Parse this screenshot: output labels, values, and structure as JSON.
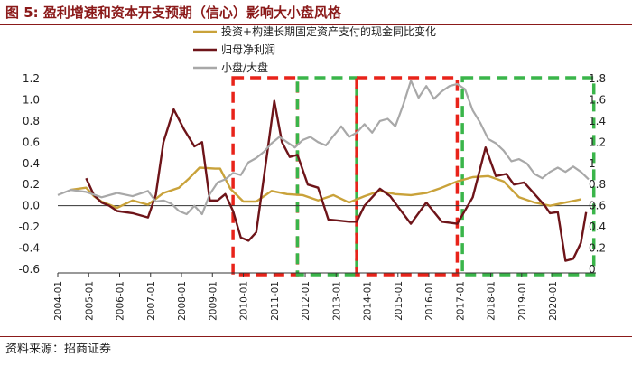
{
  "figure": {
    "title": "图 5: 盈利增速和资本开支预期（信心）影响大小盘风格",
    "source": "资料来源：招商证券"
  },
  "chart_data": {
    "type": "line",
    "x_ticks": [
      "2004-01",
      "2005-01",
      "2006-01",
      "2007-01",
      "2008-01",
      "2009-01",
      "2010-01",
      "2011-01",
      "2012-01",
      "2013-01",
      "2014-01",
      "2015-01",
      "2016-01",
      "2017-01",
      "2018-01",
      "2019-01",
      "2020-01"
    ],
    "y_left": {
      "ticks": [
        "-0.6",
        "-0.4",
        "-0.2",
        "0.0",
        "0.2",
        "0.4",
        "0.6",
        "0.8",
        "1.0",
        "1.2"
      ],
      "range": [
        -0.6,
        1.2
      ]
    },
    "y_right": {
      "ticks": [
        "0",
        "0.2",
        "0.4",
        "0.6",
        "0.8",
        "1",
        "1.2",
        "1.4",
        "1.6",
        "1.8"
      ],
      "range": [
        0,
        1.8
      ]
    },
    "legend_position": "top",
    "series": [
      {
        "name": "投资+构建长期固定资产支付的现金同比变化",
        "axis": "left",
        "color": "#c9a23a",
        "points": [
          [
            "2004-06",
            0.15
          ],
          [
            "2004-12",
            0.17
          ],
          [
            "2005-03",
            0.09
          ],
          [
            "2005-06",
            0.04
          ],
          [
            "2005-12",
            -0.02
          ],
          [
            "2006-06",
            0.05
          ],
          [
            "2006-12",
            0.01
          ],
          [
            "2007-06",
            0.12
          ],
          [
            "2007-12",
            0.17
          ],
          [
            "2008-04",
            0.26
          ],
          [
            "2008-08",
            0.36
          ],
          [
            "2009-02",
            0.35
          ],
          [
            "2009-04",
            0.35
          ],
          [
            "2009-08",
            0.16
          ],
          [
            "2010-01",
            0.04
          ],
          [
            "2010-06",
            0.04
          ],
          [
            "2010-12",
            0.14
          ],
          [
            "2011-06",
            0.11
          ],
          [
            "2011-12",
            0.1
          ],
          [
            "2012-06",
            0.05
          ],
          [
            "2012-12",
            0.1
          ],
          [
            "2013-06",
            0.03
          ],
          [
            "2013-12",
            0.09
          ],
          [
            "2014-06",
            0.14
          ],
          [
            "2014-12",
            0.11
          ],
          [
            "2015-06",
            0.1
          ],
          [
            "2015-12",
            0.12
          ],
          [
            "2016-06",
            0.17
          ],
          [
            "2016-12",
            0.23
          ],
          [
            "2017-06",
            0.27
          ],
          [
            "2017-12",
            0.28
          ],
          [
            "2018-06",
            0.23
          ],
          [
            "2018-12",
            0.08
          ],
          [
            "2019-06",
            0.03
          ],
          [
            "2019-12",
            0.0
          ],
          [
            "2020-06",
            0.03
          ],
          [
            "2020-12",
            0.06
          ]
        ]
      },
      {
        "name": "归母净利润",
        "axis": "left",
        "color": "#6e1419",
        "points": [
          [
            "2004-12",
            0.26
          ],
          [
            "2005-03",
            0.1
          ],
          [
            "2005-06",
            0.03
          ],
          [
            "2005-09",
            0.0
          ],
          [
            "2005-12",
            -0.05
          ],
          [
            "2006-06",
            -0.07
          ],
          [
            "2006-12",
            -0.11
          ],
          [
            "2007-03",
            0.1
          ],
          [
            "2007-06",
            0.6
          ],
          [
            "2007-10",
            0.91
          ],
          [
            "2008-02",
            0.72
          ],
          [
            "2008-06",
            0.56
          ],
          [
            "2008-09",
            0.6
          ],
          [
            "2008-12",
            0.05
          ],
          [
            "2009-03",
            0.05
          ],
          [
            "2009-06",
            0.11
          ],
          [
            "2009-09",
            -0.05
          ],
          [
            "2009-12",
            -0.3
          ],
          [
            "2010-03",
            -0.33
          ],
          [
            "2010-06",
            -0.25
          ],
          [
            "2010-10",
            0.45
          ],
          [
            "2011-01",
            0.99
          ],
          [
            "2011-04",
            0.6
          ],
          [
            "2011-07",
            0.46
          ],
          [
            "2011-10",
            0.48
          ],
          [
            "2012-02",
            0.2
          ],
          [
            "2012-06",
            0.17
          ],
          [
            "2012-10",
            -0.13
          ],
          [
            "2013-02",
            -0.14
          ],
          [
            "2013-06",
            -0.15
          ],
          [
            "2013-09",
            -0.15
          ],
          [
            "2013-12",
            0.0
          ],
          [
            "2014-03",
            0.08
          ],
          [
            "2014-06",
            0.16
          ],
          [
            "2014-10",
            0.09
          ],
          [
            "2015-01",
            -0.01
          ],
          [
            "2015-06",
            -0.17
          ],
          [
            "2015-12",
            0.03
          ],
          [
            "2016-06",
            -0.15
          ],
          [
            "2016-12",
            -0.17
          ],
          [
            "2017-06",
            0.08
          ],
          [
            "2017-11",
            0.55
          ],
          [
            "2018-03",
            0.28
          ],
          [
            "2018-07",
            0.3
          ],
          [
            "2018-10",
            0.2
          ],
          [
            "2019-02",
            0.22
          ],
          [
            "2019-06",
            0.11
          ],
          [
            "2019-10",
            0.0
          ],
          [
            "2019-12",
            -0.07
          ],
          [
            "2020-03",
            -0.06
          ],
          [
            "2020-06",
            -0.52
          ],
          [
            "2020-09",
            -0.5
          ],
          [
            "2020-12",
            -0.35
          ],
          [
            "2021-02",
            -0.06
          ]
        ]
      },
      {
        "name": "小盘/大盘",
        "axis": "right",
        "color": "#a8a8a8",
        "points": [
          [
            "2004-01",
            0.7
          ],
          [
            "2004-06",
            0.75
          ],
          [
            "2004-12",
            0.73
          ],
          [
            "2005-06",
            0.68
          ],
          [
            "2005-12",
            0.72
          ],
          [
            "2006-06",
            0.69
          ],
          [
            "2006-12",
            0.74
          ],
          [
            "2007-03",
            0.64
          ],
          [
            "2007-06",
            0.65
          ],
          [
            "2007-09",
            0.62
          ],
          [
            "2007-12",
            0.55
          ],
          [
            "2008-03",
            0.52
          ],
          [
            "2008-06",
            0.6
          ],
          [
            "2008-09",
            0.52
          ],
          [
            "2008-12",
            0.71
          ],
          [
            "2009-03",
            0.82
          ],
          [
            "2009-06",
            0.85
          ],
          [
            "2009-09",
            0.91
          ],
          [
            "2009-12",
            0.89
          ],
          [
            "2010-03",
            1.01
          ],
          [
            "2010-06",
            1.05
          ],
          [
            "2010-09",
            1.11
          ],
          [
            "2010-12",
            1.19
          ],
          [
            "2011-03",
            1.25
          ],
          [
            "2011-06",
            1.2
          ],
          [
            "2011-09",
            1.15
          ],
          [
            "2011-12",
            1.22
          ],
          [
            "2012-03",
            1.25
          ],
          [
            "2012-06",
            1.2
          ],
          [
            "2012-09",
            1.17
          ],
          [
            "2012-12",
            1.26
          ],
          [
            "2013-03",
            1.35
          ],
          [
            "2013-06",
            1.25
          ],
          [
            "2013-09",
            1.29
          ],
          [
            "2013-12",
            1.37
          ],
          [
            "2014-03",
            1.29
          ],
          [
            "2014-06",
            1.4
          ],
          [
            "2014-09",
            1.42
          ],
          [
            "2014-12",
            1.35
          ],
          [
            "2015-03",
            1.55
          ],
          [
            "2015-06",
            1.78
          ],
          [
            "2015-09",
            1.62
          ],
          [
            "2015-12",
            1.73
          ],
          [
            "2016-03",
            1.61
          ],
          [
            "2016-06",
            1.68
          ],
          [
            "2016-09",
            1.73
          ],
          [
            "2016-12",
            1.75
          ],
          [
            "2017-03",
            1.7
          ],
          [
            "2017-06",
            1.5
          ],
          [
            "2017-09",
            1.38
          ],
          [
            "2017-12",
            1.23
          ],
          [
            "2018-03",
            1.19
          ],
          [
            "2018-06",
            1.12
          ],
          [
            "2018-09",
            1.02
          ],
          [
            "2018-12",
            1.04
          ],
          [
            "2019-03",
            1.0
          ],
          [
            "2019-06",
            0.9
          ],
          [
            "2019-09",
            0.86
          ],
          [
            "2019-12",
            0.92
          ],
          [
            "2020-03",
            0.96
          ],
          [
            "2020-06",
            0.92
          ],
          [
            "2020-09",
            0.97
          ],
          [
            "2020-12",
            0.92
          ],
          [
            "2021-03",
            0.85
          ]
        ]
      }
    ],
    "highlight_boxes": [
      {
        "color": "#e8231a",
        "x_range": [
          "2009-09",
          "2011-10"
        ]
      },
      {
        "color": "#3ab54a",
        "x_range": [
          "2011-10",
          "2013-09"
        ]
      },
      {
        "color": "#e8231a",
        "x_range": [
          "2013-09",
          "2016-12"
        ]
      },
      {
        "color": "#3ab54a",
        "x_range": [
          "2017-02",
          "2021-05"
        ]
      }
    ]
  }
}
